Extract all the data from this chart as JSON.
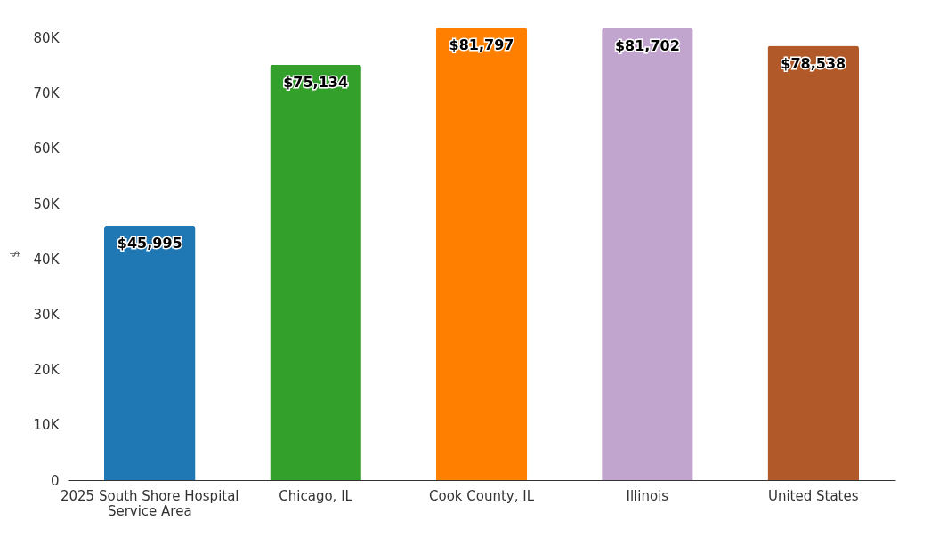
{
  "chart_data": {
    "type": "bar",
    "ylabel": "$",
    "categories": [
      "2025 South Shore Hospital Service Area",
      "Chicago, IL",
      "Cook County, IL",
      "Illinois",
      "United States"
    ],
    "values": [
      45995,
      75134,
      81797,
      81702,
      78538
    ],
    "colors": [
      "#1f77b4",
      "#33a02c",
      "#ff7f00",
      "#c2a5cf",
      "#b15928"
    ],
    "value_labels": [
      "$45,995",
      "$75,134",
      "$81,797",
      "$81,702",
      "$78,538"
    ],
    "ylim": [
      0,
      82000
    ],
    "yticks": [
      0,
      {
        "value": 10000,
        "label": "10K"
      },
      {
        "value": 20000,
        "label": "20K"
      },
      {
        "value": 30000,
        "label": "30K"
      },
      {
        "value": 40000,
        "label": "40K"
      },
      {
        "value": 50000,
        "label": "50K"
      },
      {
        "value": 60000,
        "label": "60K"
      },
      {
        "value": 70000,
        "label": "70K"
      },
      {
        "value": 80000,
        "label": "80K"
      }
    ],
    "grid": false
  }
}
